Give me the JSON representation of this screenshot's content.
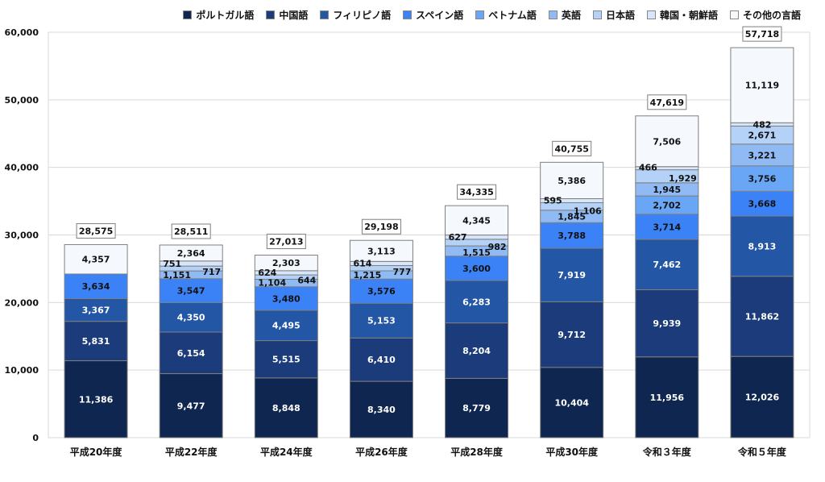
{
  "chart_data": {
    "type": "bar",
    "stacked": true,
    "title": "",
    "xlabel": "",
    "ylabel": "",
    "ylim": [
      0,
      60000
    ],
    "yticks": [
      0,
      10000,
      20000,
      30000,
      40000,
      50000,
      60000
    ],
    "ytick_labels": [
      "0",
      "10,000",
      "20,000",
      "30,000",
      "40,000",
      "50,000",
      "60,000"
    ],
    "grid": true,
    "legend_position": "top",
    "categories": [
      "平成20年度",
      "平成22年度",
      "平成24年度",
      "平成26年度",
      "平成28年度",
      "平成30年度",
      "令和３年度",
      "令和５年度"
    ],
    "series": [
      {
        "name": "ポルトガル語",
        "color": "#0f2750",
        "label_color": "#ffffff",
        "values": [
          11386,
          9477,
          8848,
          8340,
          8779,
          10404,
          11956,
          12026
        ],
        "labels": [
          "11,386",
          "9,477",
          "8,848",
          "8,340",
          "8,779",
          "10,404",
          "11,956",
          "12,026"
        ]
      },
      {
        "name": "中国語",
        "color": "#1b3b7a",
        "label_color": "#ffffff",
        "values": [
          5831,
          6154,
          5515,
          6410,
          8204,
          9712,
          9939,
          11862
        ],
        "labels": [
          "5,831",
          "6,154",
          "5,515",
          "6,410",
          "8,204",
          "9,712",
          "9,939",
          "11,862"
        ]
      },
      {
        "name": "フィリピノ語",
        "color": "#2456a6",
        "label_color": "#ffffff",
        "values": [
          3367,
          4350,
          4495,
          5153,
          6283,
          7919,
          7462,
          8913
        ],
        "labels": [
          "3,367",
          "4,350",
          "4,495",
          "5,153",
          "6,283",
          "7,919",
          "7,462",
          "8,913"
        ]
      },
      {
        "name": "スペイン語",
        "color": "#3b82f6",
        "label_color": "#111111",
        "values": [
          3634,
          3547,
          3480,
          3576,
          3600,
          3788,
          3714,
          3668
        ],
        "labels": [
          "3,634",
          "3,547",
          "3,480",
          "3,576",
          "3,600",
          "3,788",
          "3,714",
          "3,668"
        ]
      },
      {
        "name": "ベトナム語",
        "color": "#6aa6f6",
        "label_color": "#111111",
        "values": [
          0,
          0,
          0,
          0,
          0,
          0,
          2702,
          3756
        ],
        "labels": [
          "",
          "",
          "",
          "",
          "",
          "",
          "2,702",
          "3,756"
        ]
      },
      {
        "name": "英語",
        "color": "#8fbaf4",
        "label_color": "#111111",
        "values": [
          0,
          1151,
          1104,
          1215,
          1515,
          1845,
          1945,
          3221
        ],
        "labels": [
          "",
          "1,151",
          "1,104",
          "1,215",
          "1,515",
          "1,845",
          "1,945",
          "3,221"
        ]
      },
      {
        "name": "日本語",
        "color": "#b4d2f8",
        "label_color": "#111111",
        "values": [
          0,
          717,
          644,
          777,
          982,
          1106,
          1929,
          2671
        ],
        "labels": [
          "",
          "717",
          "644",
          "777",
          "982",
          "1,106",
          "1,929",
          "2,671"
        ]
      },
      {
        "name": "韓国・朝鮮語",
        "color": "#d7e6fb",
        "label_color": "#111111",
        "values": [
          0,
          751,
          624,
          614,
          627,
          595,
          466,
          482
        ],
        "labels": [
          "",
          "751",
          "624",
          "614",
          "627",
          "595",
          "466",
          "482"
        ]
      },
      {
        "name": "その他の言語",
        "color": "#f5f9fe",
        "label_color": "#111111",
        "values": [
          4357,
          2364,
          2303,
          3113,
          4345,
          5386,
          7506,
          11119
        ],
        "labels": [
          "4,357",
          "2,364",
          "2,303",
          "3,113",
          "4,345",
          "5,386",
          "7,506",
          "11,119"
        ]
      }
    ],
    "totals": [
      28575,
      28511,
      27013,
      29198,
      34335,
      40755,
      47619,
      57718
    ],
    "total_labels": [
      "28,575",
      "28,511",
      "27,013",
      "29,198",
      "34,335",
      "40,755",
      "47,619",
      "57,718"
    ]
  }
}
